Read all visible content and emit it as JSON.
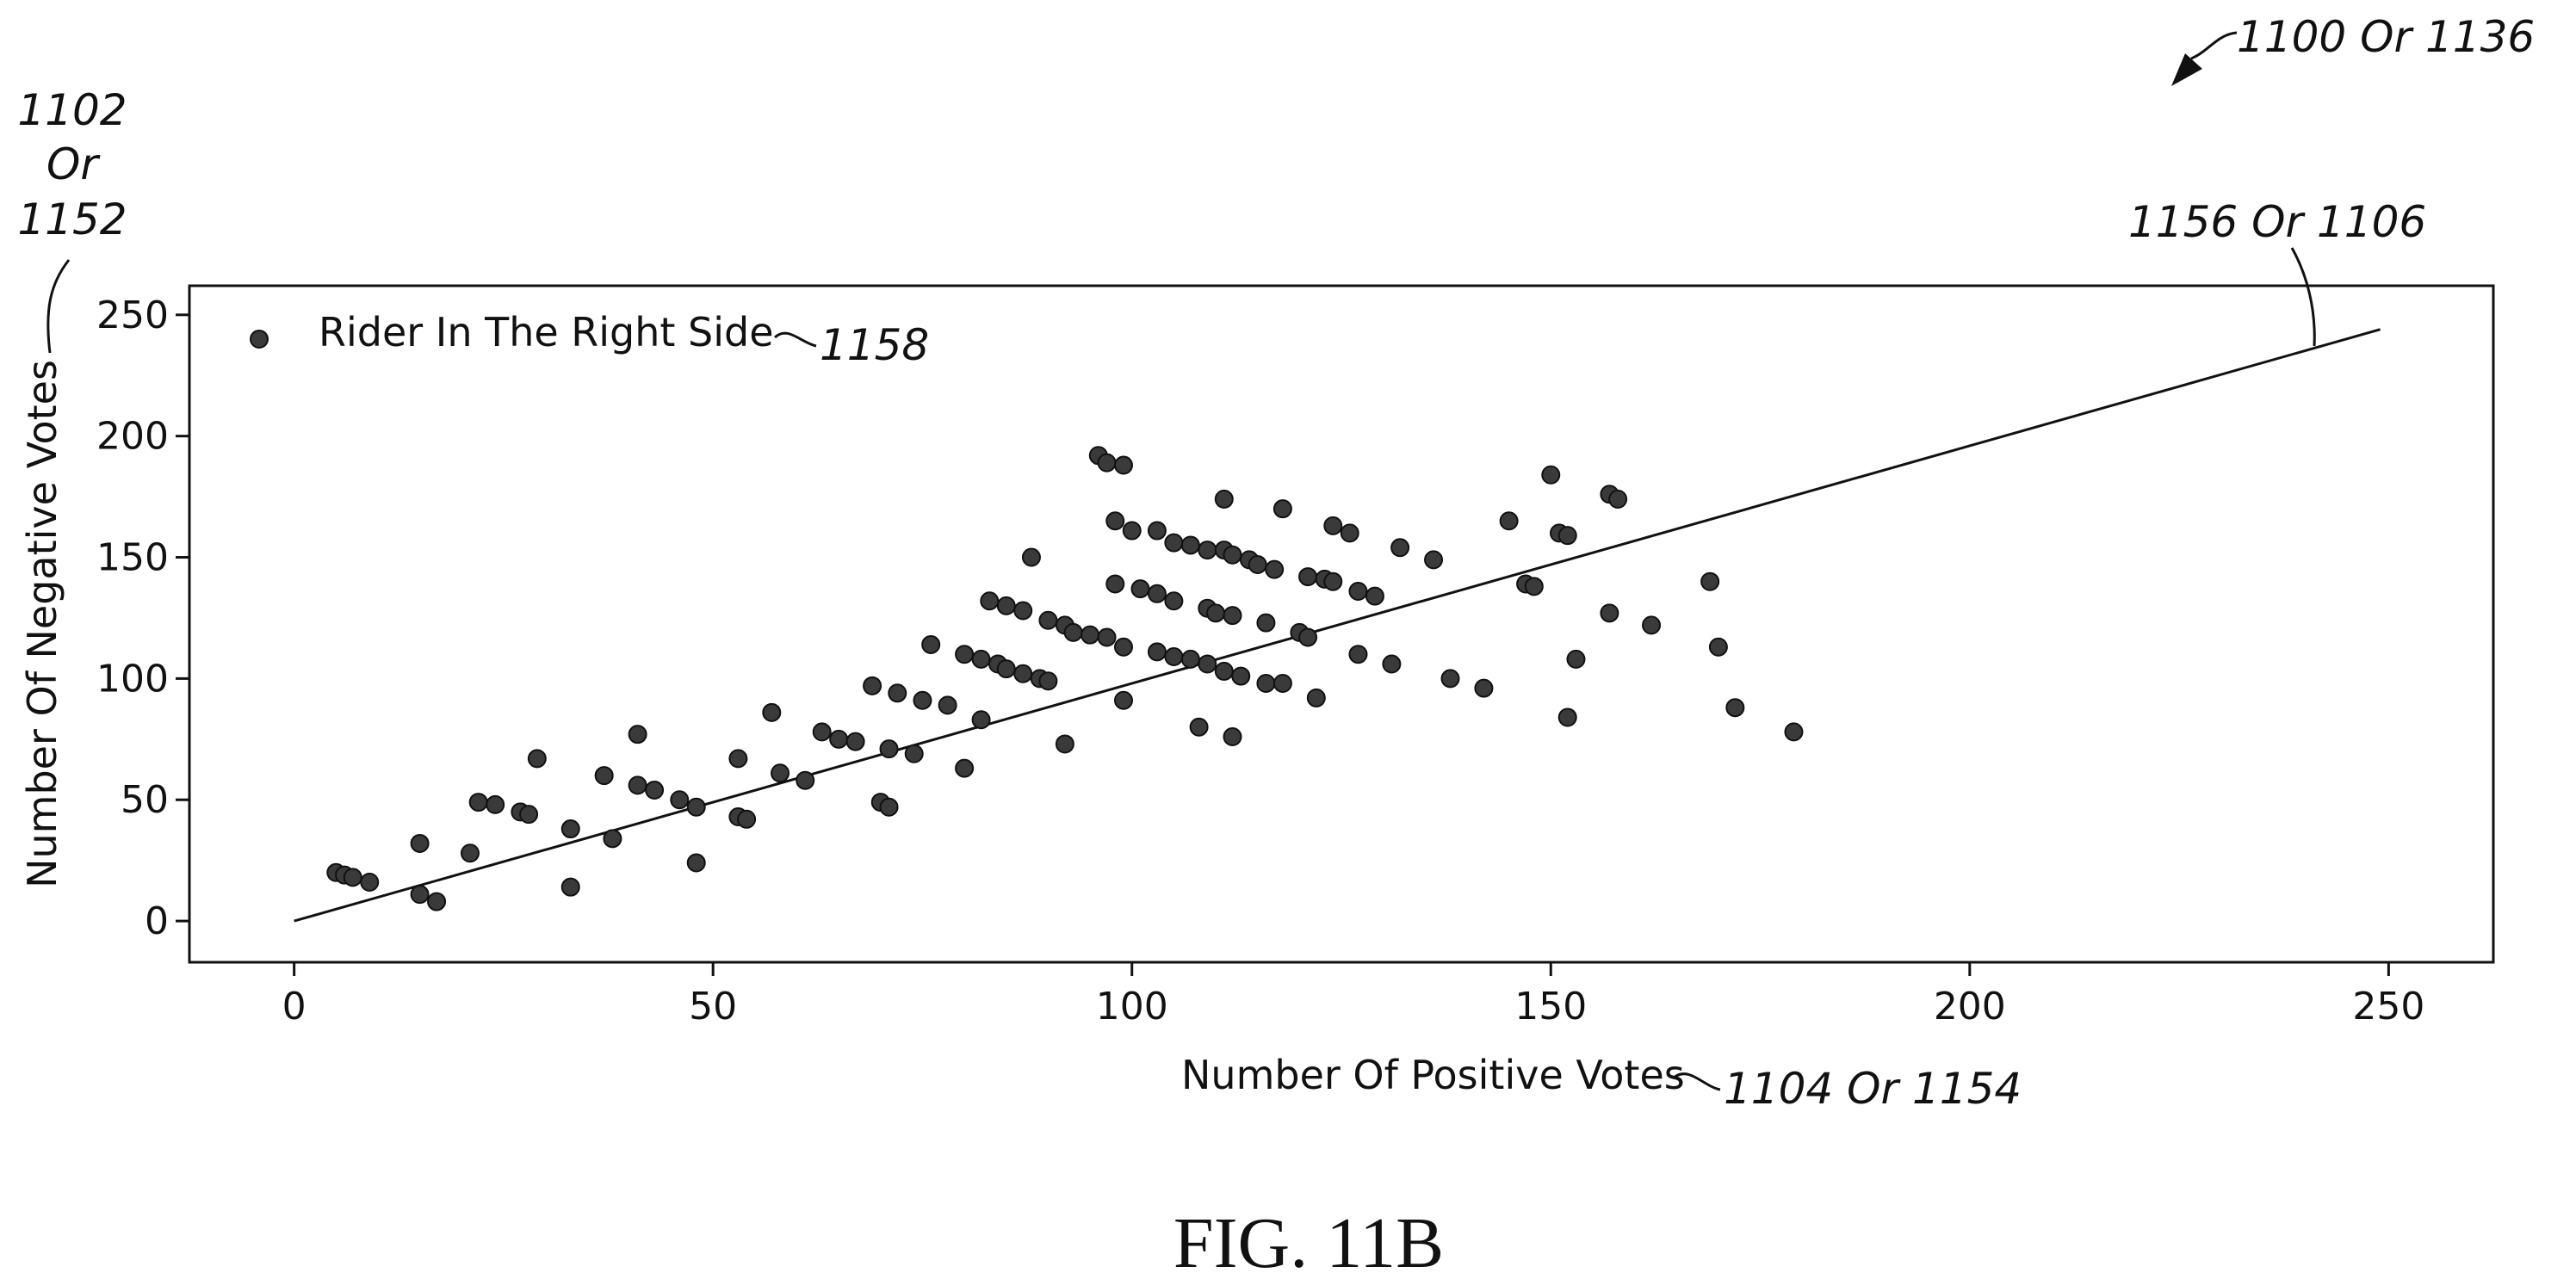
{
  "figure_label": "FIG. 11B",
  "refs": {
    "figure": "1100 Or 1136",
    "y_axis_line1": "1102",
    "y_axis_line2": "Or",
    "y_axis_line3": "1152",
    "trend_line": "1156 Or 1106",
    "legend": "1158",
    "x_axis": "1104 Or 1154"
  },
  "chart_data": {
    "type": "scatter",
    "title": "",
    "xlabel": "Number Of Positive Votes",
    "ylabel": "Number Of Negative Votes",
    "xlim": [
      -12.5,
      262.5
    ],
    "ylim": [
      -17,
      262
    ],
    "xticks": [
      0,
      50,
      100,
      150,
      200,
      250
    ],
    "yticks": [
      0,
      50,
      100,
      150,
      200,
      250
    ],
    "grid": false,
    "legend_position": "top-left",
    "series": [
      {
        "name": "Rider In The Right Side",
        "color": "#3a3a3a",
        "points": [
          [
            5,
            20
          ],
          [
            6,
            19
          ],
          [
            7,
            18
          ],
          [
            9,
            16
          ],
          [
            15,
            32
          ],
          [
            15,
            11
          ],
          [
            17,
            8
          ],
          [
            21,
            28
          ],
          [
            22,
            49
          ],
          [
            24,
            48
          ],
          [
            27,
            45
          ],
          [
            28,
            44
          ],
          [
            29,
            67
          ],
          [
            33,
            38
          ],
          [
            33,
            14
          ],
          [
            37,
            60
          ],
          [
            38,
            34
          ],
          [
            41,
            77
          ],
          [
            41,
            56
          ],
          [
            43,
            54
          ],
          [
            46,
            50
          ],
          [
            48,
            47
          ],
          [
            48,
            24
          ],
          [
            53,
            67
          ],
          [
            53,
            43
          ],
          [
            54,
            42
          ],
          [
            57,
            86
          ],
          [
            58,
            61
          ],
          [
            61,
            58
          ],
          [
            63,
            78
          ],
          [
            65,
            75
          ],
          [
            67,
            74
          ],
          [
            69,
            97
          ],
          [
            70,
            49
          ],
          [
            71,
            71
          ],
          [
            71,
            47
          ],
          [
            72,
            94
          ],
          [
            74,
            69
          ],
          [
            75,
            91
          ],
          [
            76,
            114
          ],
          [
            78,
            89
          ],
          [
            80,
            110
          ],
          [
            80,
            63
          ],
          [
            82,
            108
          ],
          [
            82,
            83
          ],
          [
            83,
            132
          ],
          [
            84,
            106
          ],
          [
            85,
            130
          ],
          [
            85,
            104
          ],
          [
            87,
            128
          ],
          [
            87,
            102
          ],
          [
            88,
            150
          ],
          [
            89,
            100
          ],
          [
            90,
            124
          ],
          [
            90,
            99
          ],
          [
            92,
            122
          ],
          [
            92,
            73
          ],
          [
            93,
            119
          ],
          [
            95,
            118
          ],
          [
            96,
            192
          ],
          [
            97,
            117
          ],
          [
            97,
            189
          ],
          [
            98,
            165
          ],
          [
            98,
            139
          ],
          [
            99,
            188
          ],
          [
            99,
            113
          ],
          [
            99,
            91
          ],
          [
            100,
            161
          ],
          [
            101,
            137
          ],
          [
            103,
            161
          ],
          [
            103,
            135
          ],
          [
            103,
            111
          ],
          [
            105,
            156
          ],
          [
            105,
            132
          ],
          [
            105,
            109
          ],
          [
            107,
            155
          ],
          [
            107,
            108
          ],
          [
            108,
            80
          ],
          [
            109,
            153
          ],
          [
            109,
            129
          ],
          [
            109,
            106
          ],
          [
            110,
            127
          ],
          [
            111,
            174
          ],
          [
            111,
            153
          ],
          [
            111,
            103
          ],
          [
            112,
            151
          ],
          [
            112,
            126
          ],
          [
            112,
            76
          ],
          [
            113,
            101
          ],
          [
            114,
            149
          ],
          [
            115,
            147
          ],
          [
            116,
            123
          ],
          [
            116,
            98
          ],
          [
            117,
            145
          ],
          [
            118,
            170
          ],
          [
            118,
            98
          ],
          [
            120,
            119
          ],
          [
            121,
            142
          ],
          [
            121,
            117
          ],
          [
            122,
            92
          ],
          [
            123,
            141
          ],
          [
            124,
            163
          ],
          [
            124,
            140
          ],
          [
            126,
            160
          ],
          [
            127,
            136
          ],
          [
            127,
            110
          ],
          [
            129,
            134
          ],
          [
            131,
            106
          ],
          [
            132,
            154
          ],
          [
            136,
            149
          ],
          [
            138,
            100
          ],
          [
            142,
            96
          ],
          [
            145,
            165
          ],
          [
            147,
            139
          ],
          [
            148,
            138
          ],
          [
            150,
            184
          ],
          [
            151,
            160
          ],
          [
            152,
            159
          ],
          [
            152,
            84
          ],
          [
            153,
            108
          ],
          [
            157,
            127
          ],
          [
            157,
            176
          ],
          [
            158,
            174
          ],
          [
            162,
            122
          ],
          [
            169,
            140
          ],
          [
            170,
            113
          ],
          [
            172,
            88
          ],
          [
            179,
            78
          ]
        ]
      }
    ],
    "trend_line": {
      "from": [
        0,
        0
      ],
      "to": [
        249,
        244
      ]
    }
  }
}
